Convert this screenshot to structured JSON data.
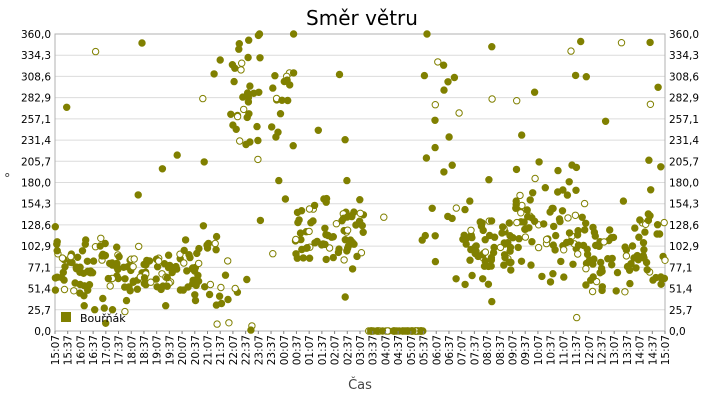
{
  "chart_data": {
    "type": "scatter",
    "title": "Směr větru",
    "xlabel": "Čas",
    "ylabel": "°",
    "ylim": [
      0,
      360
    ],
    "y_ticks": [
      "0,0",
      "25,7",
      "51,4",
      "77,1",
      "102,9",
      "128,6",
      "154,3",
      "180,0",
      "205,7",
      "231,4",
      "257,1",
      "282,9",
      "308,6",
      "334,3",
      "360,0"
    ],
    "x_ticks": [
      "15:07",
      "15:37",
      "16:07",
      "16:37",
      "17:07",
      "17:37",
      "18:07",
      "18:37",
      "19:07",
      "19:37",
      "20:07",
      "20:37",
      "21:07",
      "21:37",
      "22:07",
      "22:37",
      "23:07",
      "23:37",
      "00:07",
      "00:37",
      "01:07",
      "01:37",
      "02:07",
      "02:37",
      "03:07",
      "03:37",
      "04:07",
      "04:37",
      "05:07",
      "05:37",
      "06:07",
      "06:37",
      "07:07",
      "07:37",
      "08:07",
      "08:37",
      "09:07",
      "09:37",
      "10:07",
      "10:37",
      "11:07",
      "11:37",
      "12:07",
      "12:37",
      "13:07",
      "13:37",
      "14:07",
      "14:37",
      "15:07"
    ],
    "grid": true,
    "legend_position": "bottom-left",
    "series": [
      {
        "name": "Bouřňák",
        "color": "#808000",
        "segments": [
          {
            "x_range": [
              0,
              5.5
            ],
            "mean": 75,
            "spread": 22,
            "outlier_prob": 0.08,
            "density": 14
          },
          {
            "x_range": [
              5.5,
              11.5
            ],
            "mean": 68,
            "spread": 18,
            "outlier_prob": 0.05,
            "density": 14
          },
          {
            "x_range": [
              11.5,
              13.8
            ],
            "mean": 75,
            "spread": 30,
            "outlier_prob": 0.25,
            "density": 10
          },
          {
            "x_range": [
              13.8,
              18.8
            ],
            "mean": 285,
            "spread": 45,
            "outlier_prob": 0.28,
            "density": 12
          },
          {
            "x_range": [
              18.8,
              24.3
            ],
            "mean": 120,
            "spread": 22,
            "outlier_prob": 0.1,
            "density": 14
          },
          {
            "x_range": [
              24.3,
              29.0
            ],
            "mean": 0,
            "spread": 0,
            "outlier_prob": 0.04,
            "density": 10
          },
          {
            "x_range": [
              29.0,
              31.5
            ],
            "mean": 230,
            "spread": 80,
            "outlier_prob": 0.3,
            "density": 8
          },
          {
            "x_range": [
              31.5,
              36.0
            ],
            "mean": 100,
            "spread": 22,
            "outlier_prob": 0.08,
            "density": 15
          },
          {
            "x_range": [
              36.0,
              41.5
            ],
            "mean": 130,
            "spread": 35,
            "outlier_prob": 0.12,
            "density": 15
          },
          {
            "x_range": [
              41.5,
              48.0
            ],
            "mean": 95,
            "spread": 28,
            "outlier_prob": 0.12,
            "density": 14
          }
        ]
      }
    ]
  }
}
